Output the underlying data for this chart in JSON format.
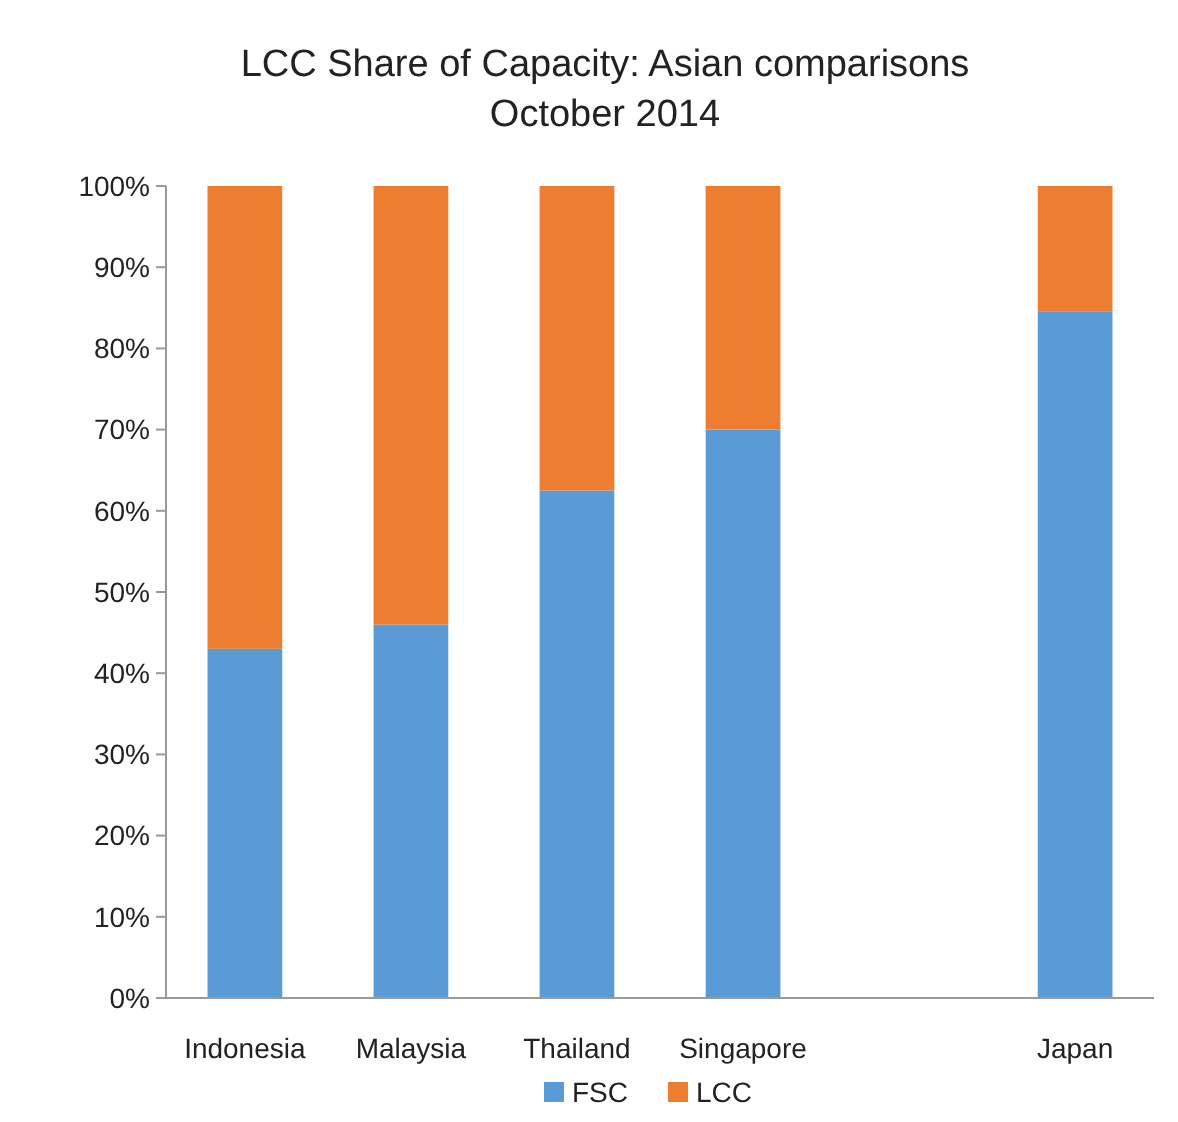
{
  "chart_data": {
    "type": "bar",
    "title": "LCC Share of Capacity: Asian comparisons",
    "subtitle": "October 2014",
    "categories": [
      "Indonesia",
      "Malaysia",
      "Thailand",
      "Singapore",
      null,
      "Japan"
    ],
    "stacked": true,
    "series": [
      {
        "name": "FSC",
        "color": "#5b9bd5",
        "values": [
          43,
          46,
          62.5,
          70,
          null,
          84.5
        ]
      },
      {
        "name": "LCC",
        "color": "#ed7d31",
        "values": [
          57,
          54,
          37.5,
          30,
          null,
          15.5
        ]
      }
    ],
    "ylim": [
      0,
      100
    ],
    "yticks": [
      {
        "value": 0,
        "label": "0%"
      },
      {
        "value": 10,
        "label": "10%"
      },
      {
        "value": 20,
        "label": "20%"
      },
      {
        "value": 30,
        "label": "30%"
      },
      {
        "value": 40,
        "label": "40%"
      },
      {
        "value": 50,
        "label": "50%"
      },
      {
        "value": 60,
        "label": "60%"
      },
      {
        "value": 70,
        "label": "70%"
      },
      {
        "value": 80,
        "label": "80%"
      },
      {
        "value": 90,
        "label": "90%"
      },
      {
        "value": 100,
        "label": "100%"
      }
    ],
    "grid": false,
    "legend": "bottom"
  }
}
